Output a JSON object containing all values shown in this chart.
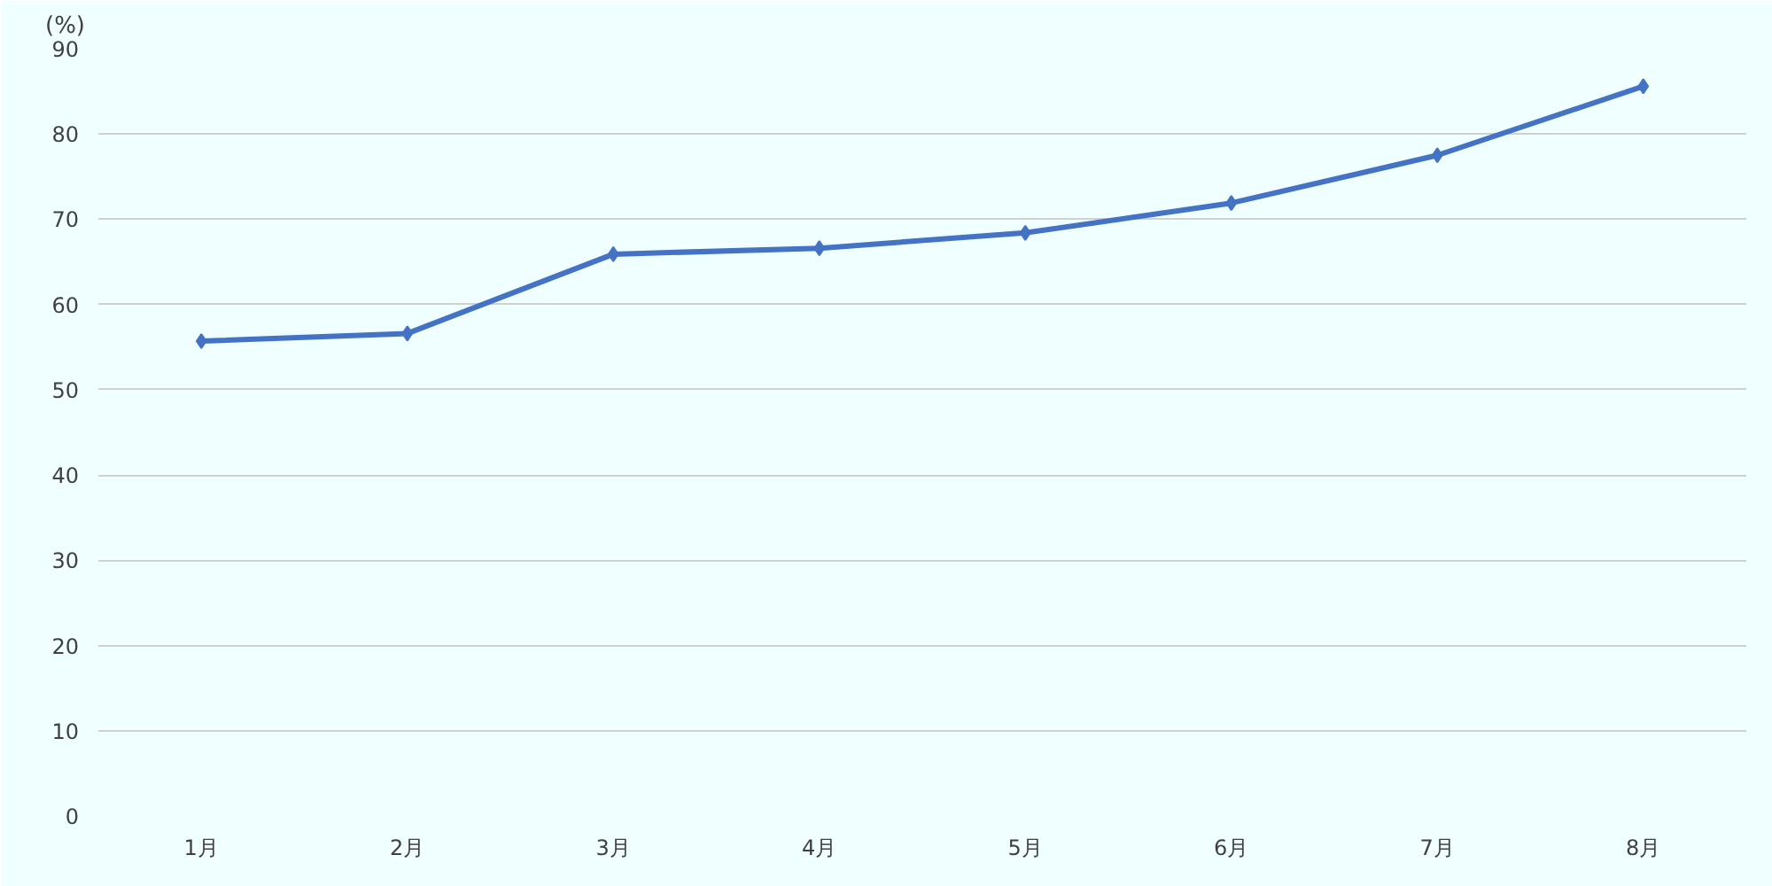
{
  "chart_data": {
    "type": "line",
    "ylabel": "(%)",
    "categories": [
      "1月",
      "2月",
      "3月",
      "4月",
      "5月",
      "6月",
      "7月",
      "8月"
    ],
    "series": [
      {
        "color": "#4472c4",
        "values": [
          55.7,
          56.6,
          65.9,
          66.6,
          68.4,
          71.9,
          77.5,
          85.6
        ]
      }
    ],
    "ylim": [
      0,
      90
    ],
    "yticks": [
      0,
      10,
      20,
      30,
      40,
      50,
      60,
      70,
      80,
      90
    ],
    "grid": "y",
    "marker": "diamond",
    "line_style": "solid"
  }
}
